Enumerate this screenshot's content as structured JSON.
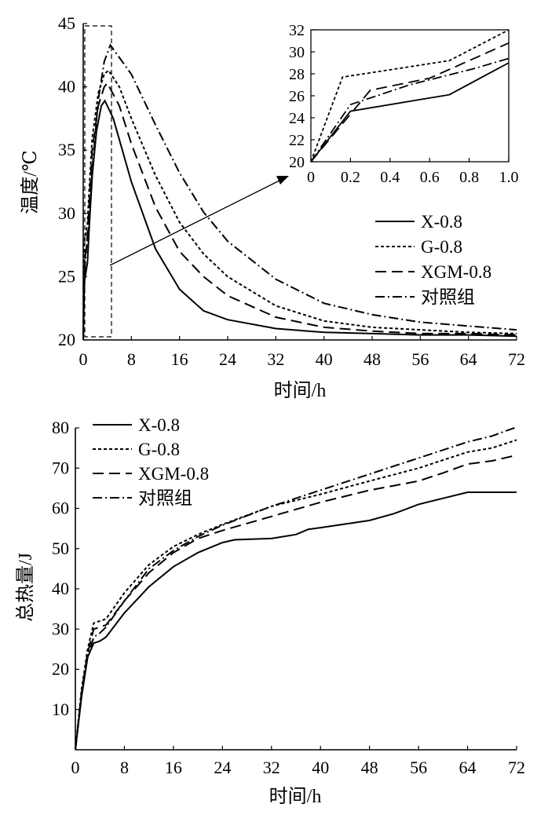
{
  "chart_data": [
    {
      "type": "line",
      "xlabel": "时间/h",
      "ylabel": "温度/℃",
      "xlim": [
        0,
        72
      ],
      "ylim": [
        20,
        45
      ],
      "xticks": [
        "0",
        "8",
        "16",
        "24",
        "32",
        "40",
        "48",
        "56",
        "64",
        "72"
      ],
      "yticks": [
        "20",
        "25",
        "30",
        "35",
        "40",
        "45"
      ],
      "grid": false,
      "legend_position": "right",
      "series": [
        {
          "name": "X-0.8",
          "style": "solid",
          "points": [
            [
              0,
              20
            ],
            [
              0.2,
              24.6
            ],
            [
              0.7,
              26.1
            ],
            [
              1,
              29
            ],
            [
              1.5,
              33
            ],
            [
              2.2,
              36.5
            ],
            [
              3,
              38.5
            ],
            [
              3.6,
              38.9
            ],
            [
              5,
              37.5
            ],
            [
              8,
              32.5
            ],
            [
              12,
              27.2
            ],
            [
              16,
              24
            ],
            [
              20,
              22.3
            ],
            [
              24,
              21.6
            ],
            [
              32,
              20.9
            ],
            [
              40,
              20.6
            ],
            [
              48,
              20.5
            ],
            [
              56,
              20.4
            ],
            [
              64,
              20.4
            ],
            [
              72,
              20.3
            ]
          ]
        },
        {
          "name": "G-0.8",
          "style": "dotted",
          "points": [
            [
              0,
              20
            ],
            [
              0.16,
              27.7
            ],
            [
              0.7,
              29.2
            ],
            [
              1,
              32
            ],
            [
              1.5,
              36
            ],
            [
              2.5,
              39.5
            ],
            [
              3.5,
              41
            ],
            [
              4.2,
              41.3
            ],
            [
              6,
              40
            ],
            [
              8,
              37.5
            ],
            [
              12,
              33
            ],
            [
              16,
              29.3
            ],
            [
              20,
              26.8
            ],
            [
              24,
              25
            ],
            [
              32,
              22.7
            ],
            [
              40,
              21.5
            ],
            [
              48,
              21
            ],
            [
              56,
              20.8
            ],
            [
              64,
              20.6
            ],
            [
              72,
              20.5
            ]
          ]
        },
        {
          "name": "XGM-0.8",
          "style": "dashed",
          "points": [
            [
              0,
              20
            ],
            [
              0.3,
              26.5
            ],
            [
              0.6,
              27.6
            ],
            [
              1,
              30.8
            ],
            [
              1.5,
              35
            ],
            [
              2.5,
              38.5
            ],
            [
              3.5,
              40
            ],
            [
              4,
              40.3
            ],
            [
              6,
              38.5
            ],
            [
              8,
              35.5
            ],
            [
              12,
              30.5
            ],
            [
              16,
              27
            ],
            [
              20,
              25
            ],
            [
              24,
              23.5
            ],
            [
              32,
              21.8
            ],
            [
              40,
              21
            ],
            [
              48,
              20.7
            ],
            [
              56,
              20.5
            ],
            [
              64,
              20.5
            ],
            [
              72,
              20.4
            ]
          ]
        },
        {
          "name": "对照组",
          "style": "dash-dot",
          "points": [
            [
              0,
              20
            ],
            [
              0.2,
              25.2
            ],
            [
              0.5,
              27
            ],
            [
              0.83,
              28.5
            ],
            [
              1,
              29.4
            ],
            [
              1.5,
              33.5
            ],
            [
              2.5,
              39
            ],
            [
              3.5,
              42
            ],
            [
              4.5,
              43.3
            ],
            [
              8,
              41
            ],
            [
              12,
              37
            ],
            [
              16,
              33.2
            ],
            [
              20,
              30.1
            ],
            [
              24,
              27.8
            ],
            [
              32,
              24.8
            ],
            [
              40,
              22.9
            ],
            [
              48,
              22
            ],
            [
              56,
              21.4
            ],
            [
              64,
              21.1
            ],
            [
              72,
              20.8
            ]
          ]
        }
      ],
      "inset": {
        "xlim": [
          0,
          1.0
        ],
        "ylim": [
          20,
          32
        ],
        "xticks": [
          "0",
          "0.2",
          "0.4",
          "0.6",
          "0.8",
          "1.0"
        ],
        "yticks": [
          "20",
          "22",
          "24",
          "26",
          "28",
          "30",
          "32"
        ]
      }
    },
    {
      "type": "line",
      "xlabel": "时间/h",
      "ylabel": "总热量/J",
      "xlim": [
        0,
        72
      ],
      "ylim": [
        0,
        80
      ],
      "xticks": [
        "0",
        "8",
        "16",
        "24",
        "32",
        "40",
        "48",
        "56",
        "64",
        "72"
      ],
      "yticks": [
        "10",
        "20",
        "30",
        "40",
        "50",
        "60",
        "70",
        "80"
      ],
      "grid": false,
      "legend_position": "top-left",
      "series": [
        {
          "name": "X-0.8",
          "style": "solid",
          "points": [
            [
              0,
              0
            ],
            [
              1,
              13
            ],
            [
              2,
              23
            ],
            [
              3,
              26.5
            ],
            [
              4,
              27
            ],
            [
              5,
              28
            ],
            [
              8,
              34
            ],
            [
              12,
              40.5
            ],
            [
              16,
              45.5
            ],
            [
              20,
              49
            ],
            [
              24,
              51.5
            ],
            [
              26,
              52.2
            ],
            [
              32,
              52.5
            ],
            [
              36,
              53.5
            ],
            [
              38,
              54.8
            ],
            [
              40,
              55.2
            ],
            [
              48,
              57
            ],
            [
              52,
              58.7
            ],
            [
              56,
              61
            ],
            [
              60,
              62.5
            ],
            [
              64,
              64
            ],
            [
              72,
              64
            ]
          ]
        },
        {
          "name": "G-0.8",
          "style": "dotted",
          "points": [
            [
              0,
              0
            ],
            [
              1,
              15
            ],
            [
              2,
              25
            ],
            [
              3,
              31.5
            ],
            [
              4,
              32
            ],
            [
              5,
              32.5
            ],
            [
              8,
              39
            ],
            [
              12,
              46
            ],
            [
              16,
              50.5
            ],
            [
              20,
              53.5
            ],
            [
              24,
              56
            ],
            [
              32,
              60.5
            ],
            [
              40,
              63.5
            ],
            [
              48,
              66.8
            ],
            [
              56,
              70
            ],
            [
              60,
              72
            ],
            [
              64,
              74
            ],
            [
              68,
              75
            ],
            [
              72,
              77
            ]
          ]
        },
        {
          "name": "XGM-0.8",
          "style": "dashed",
          "points": [
            [
              0,
              0
            ],
            [
              1,
              14
            ],
            [
              2,
              24
            ],
            [
              3,
              30
            ],
            [
              4,
              30.5
            ],
            [
              5,
              31
            ],
            [
              8,
              37
            ],
            [
              12,
              44
            ],
            [
              16,
              49
            ],
            [
              20,
              52.5
            ],
            [
              24,
              54.5
            ],
            [
              32,
              58
            ],
            [
              40,
              61.5
            ],
            [
              48,
              64.5
            ],
            [
              56,
              66.8
            ],
            [
              60,
              68.8
            ],
            [
              64,
              71
            ],
            [
              68,
              71.8
            ],
            [
              72,
              73.2
            ]
          ]
        },
        {
          "name": "对照组",
          "style": "dash-dot",
          "points": [
            [
              0,
              0
            ],
            [
              1,
              14
            ],
            [
              2,
              23
            ],
            [
              3,
              28
            ],
            [
              4,
              29
            ],
            [
              5,
              30.5
            ],
            [
              8,
              37
            ],
            [
              12,
              45
            ],
            [
              16,
              49.5
            ],
            [
              20,
              53
            ],
            [
              24,
              55.8
            ],
            [
              32,
              60.5
            ],
            [
              40,
              64.5
            ],
            [
              48,
              68.5
            ],
            [
              56,
              72.5
            ],
            [
              60,
              74.5
            ],
            [
              64,
              76.5
            ],
            [
              68,
              78
            ],
            [
              72,
              80.2
            ]
          ]
        }
      ]
    }
  ]
}
